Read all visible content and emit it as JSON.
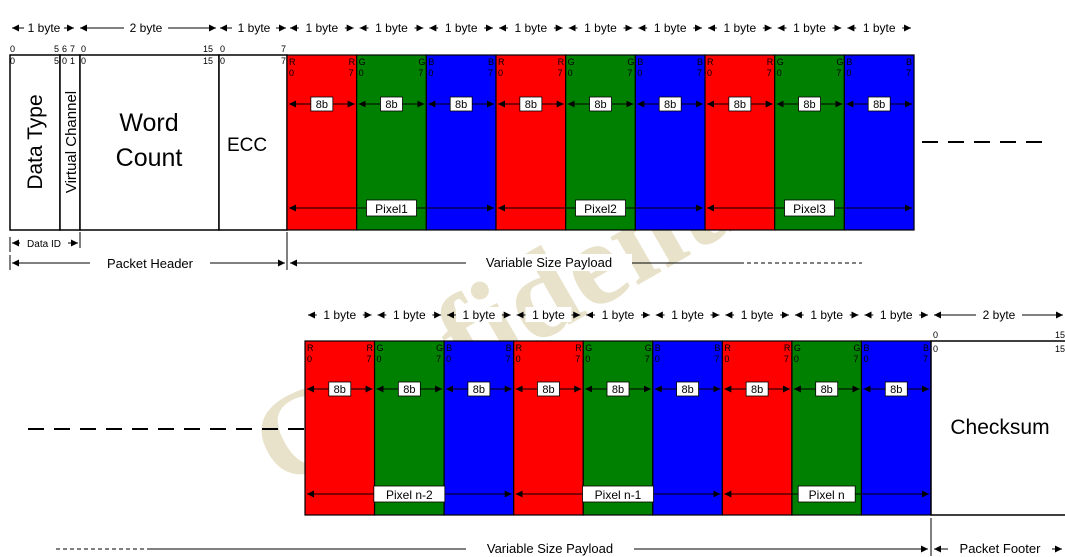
{
  "watermark": "Confidential",
  "colors": {
    "red": "#ff0000",
    "green": "#008000",
    "blue": "#0000ff",
    "line": "#000000",
    "watermark": "#d6cba0"
  },
  "top_row": {
    "byte_labels": [
      "1 byte",
      "2 byte",
      "1 byte",
      "1 byte",
      "1 byte",
      "1 byte",
      "1 byte",
      "1 byte",
      "1 byte",
      "1 byte",
      "1 byte",
      "1 byte"
    ],
    "bit_indices": {
      "datatype_top": [
        "0",
        "5"
      ],
      "datatype_bottom": [
        "0",
        "5"
      ],
      "vc_top": [
        "6",
        "7"
      ],
      "vc_bottom": [
        "0",
        "1"
      ],
      "wc_top": [
        "0",
        "15"
      ],
      "wc_bottom": [
        "0",
        "15"
      ],
      "ecc_top": [
        "0",
        "7"
      ],
      "ecc_bottom": [
        "0",
        "7"
      ]
    },
    "header_fields": {
      "data_type": "Data Type",
      "virtual_channel": "Virtual Channel",
      "word_count_line1": "Word",
      "word_count_line2": "Count",
      "ecc": "ECC"
    },
    "bytes": [
      {
        "color": "red",
        "ch": "R"
      },
      {
        "color": "green",
        "ch": "G"
      },
      {
        "color": "blue",
        "ch": "B"
      },
      {
        "color": "red",
        "ch": "R"
      },
      {
        "color": "green",
        "ch": "G"
      },
      {
        "color": "blue",
        "ch": "B"
      },
      {
        "color": "red",
        "ch": "R"
      },
      {
        "color": "green",
        "ch": "G"
      },
      {
        "color": "blue",
        "ch": "B"
      }
    ],
    "bit_label": "8b",
    "bit_lo": "0",
    "bit_hi": "7",
    "pixels": [
      "Pixel1",
      "Pixel2",
      "Pixel3"
    ],
    "data_id": "Data ID",
    "packet_header": "Packet Header",
    "payload": "Variable Size Payload"
  },
  "bottom_row": {
    "byte_labels": [
      "1 byte",
      "1 byte",
      "1 byte",
      "1 byte",
      "1 byte",
      "1 byte",
      "1 byte",
      "1 byte",
      "1 byte",
      "2 byte"
    ],
    "bytes": [
      {
        "color": "red",
        "ch": "R"
      },
      {
        "color": "green",
        "ch": "G"
      },
      {
        "color": "blue",
        "ch": "B"
      },
      {
        "color": "red",
        "ch": "R"
      },
      {
        "color": "green",
        "ch": "G"
      },
      {
        "color": "blue",
        "ch": "B"
      },
      {
        "color": "red",
        "ch": "R"
      },
      {
        "color": "green",
        "ch": "G"
      },
      {
        "color": "blue",
        "ch": "B"
      }
    ],
    "bit_label": "8b",
    "bit_lo": "0",
    "bit_hi": "7",
    "pixels": [
      "Pixel n-2",
      "Pixel n-1",
      "Pixel n"
    ],
    "checksum": "Checksum",
    "checksum_bits_top": [
      "0",
      "15"
    ],
    "checksum_bits_bottom": [
      "0",
      "15"
    ],
    "payload": "Variable Size Payload",
    "packet_footer": "Packet Footer"
  }
}
